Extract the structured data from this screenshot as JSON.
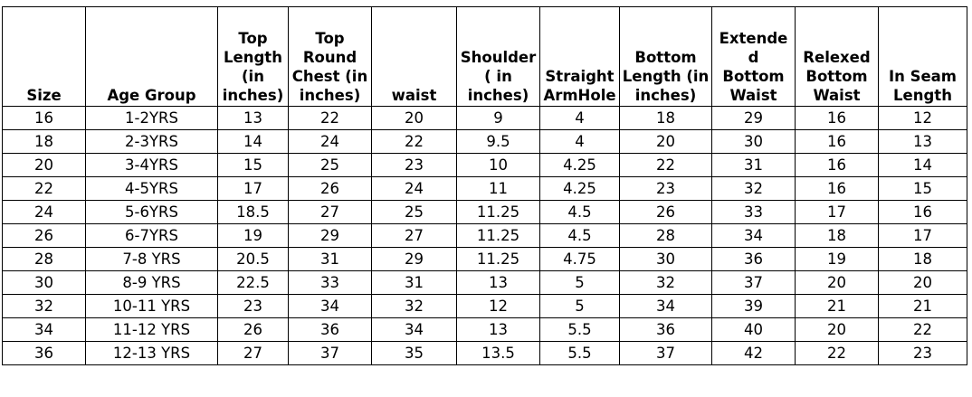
{
  "table": {
    "headers": [
      [
        "Size"
      ],
      [
        "Age Group"
      ],
      [
        "Top",
        "Length",
        "(in",
        "inches)"
      ],
      [
        "Top",
        "Round",
        "Chest (in",
        "inches)"
      ],
      [
        "waist"
      ],
      [
        "Shoulder",
        "( in",
        "inches)"
      ],
      [
        "Straight",
        "ArmHole"
      ],
      [
        "Bottom",
        "Length (in",
        "inches)"
      ],
      [
        "Extende",
        "d",
        "Bottom",
        "Waist"
      ],
      [
        "Relexed",
        "Bottom",
        "Waist"
      ],
      [
        "In Seam",
        "Length"
      ]
    ],
    "rows": [
      [
        "16",
        "1-2YRS",
        "13",
        "22",
        "20",
        "9",
        "4",
        "18",
        "29",
        "16",
        "12"
      ],
      [
        "18",
        "2-3YRS",
        "14",
        "24",
        "22",
        "9.5",
        "4",
        "20",
        "30",
        "16",
        "13"
      ],
      [
        "20",
        "3-4YRS",
        "15",
        "25",
        "23",
        "10",
        "4.25",
        "22",
        "31",
        "16",
        "14"
      ],
      [
        "22",
        "4-5YRS",
        "17",
        "26",
        "24",
        "11",
        "4.25",
        "23",
        "32",
        "16",
        "15"
      ],
      [
        "24",
        "5-6YRS",
        "18.5",
        "27",
        "25",
        "11.25",
        "4.5",
        "26",
        "33",
        "17",
        "16"
      ],
      [
        "26",
        "6-7YRS",
        "19",
        "29",
        "27",
        "11.25",
        "4.5",
        "28",
        "34",
        "18",
        "17"
      ],
      [
        "28",
        "7-8 YRS",
        "20.5",
        "31",
        "29",
        "11.25",
        "4.75",
        "30",
        "36",
        "19",
        "18"
      ],
      [
        "30",
        "8-9 YRS",
        "22.5",
        "33",
        "31",
        "13",
        "5",
        "32",
        "37",
        "20",
        "20"
      ],
      [
        "32",
        "10-11 YRS",
        "23",
        "34",
        "32",
        "12",
        "5",
        "34",
        "39",
        "21",
        "21"
      ],
      [
        "34",
        "11-12 YRS",
        "26",
        "36",
        "34",
        "13",
        "5.5",
        "36",
        "40",
        "20",
        "22"
      ],
      [
        "36",
        "12-13 YRS",
        "27",
        "37",
        "35",
        "13.5",
        "5.5",
        "37",
        "42",
        "22",
        "23"
      ]
    ]
  }
}
